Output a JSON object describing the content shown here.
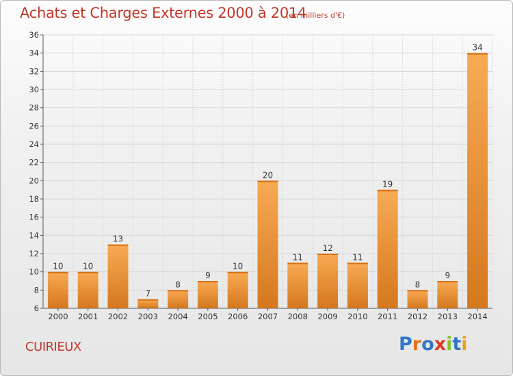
{
  "header": {
    "title": "Achats et Charges Externes 2000 à 2014",
    "unit": "(en milliers d'€)"
  },
  "footer": {
    "commune": "CUIRIEUX",
    "logo_text": "Proxiti",
    "logo_colors": [
      "#2f76c7",
      "#e8701a",
      "#2f76c7",
      "#d93b2a",
      "#8bbf2a",
      "#2f76c7",
      "#e8a31a"
    ]
  },
  "colors": {
    "bar_light": "#f8aa55",
    "bar_dark": "#d4781e",
    "title": "#c0392b",
    "grid": "#d6d6d6"
  },
  "chart_data": {
    "type": "bar",
    "title": "Achats et Charges Externes 2000 à 2014",
    "subtitle": "(en milliers d'€)",
    "categories": [
      "2000",
      "2001",
      "2002",
      "2003",
      "2004",
      "2005",
      "2006",
      "2007",
      "2008",
      "2009",
      "2010",
      "2011",
      "2012",
      "2013",
      "2014"
    ],
    "values": [
      10,
      10,
      13,
      7,
      8,
      9,
      10,
      20,
      11,
      12,
      11,
      19,
      8,
      9,
      34
    ],
    "ylim": [
      6,
      36
    ],
    "yticks": [
      6,
      8,
      10,
      12,
      14,
      16,
      18,
      20,
      22,
      24,
      26,
      28,
      30,
      32,
      34,
      36
    ],
    "grid": true,
    "xlabel": "",
    "ylabel": ""
  }
}
